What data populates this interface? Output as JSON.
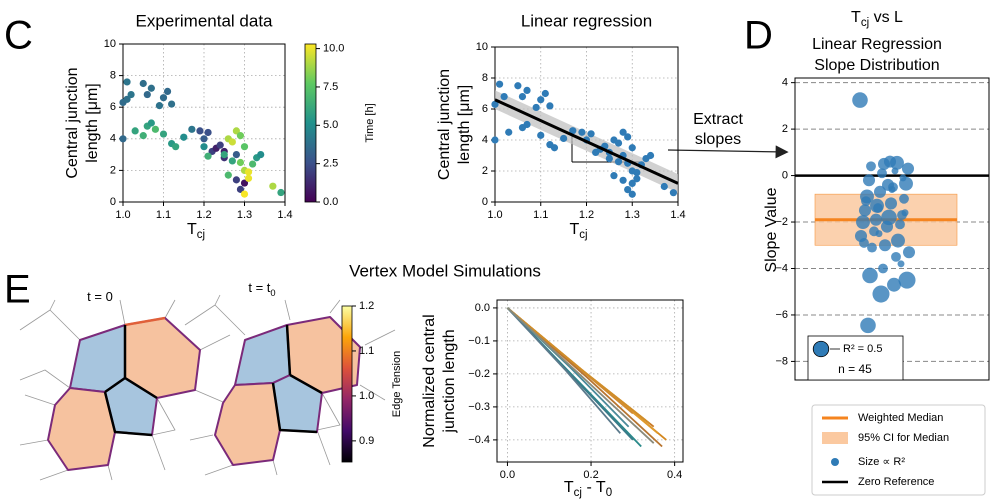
{
  "figure": {
    "panel_labels": [
      "C",
      "D",
      "E"
    ],
    "extract_label": [
      "Extract",
      "slopes"
    ],
    "section_title": "Vertex Model Simulations",
    "snapshots": [
      [
        "t = 0"
      ],
      [
        "t = t",
        "0"
      ]
    ]
  },
  "chart_data": [
    {
      "type": "scatter",
      "title": "Experimental data",
      "y_label": [
        "Central junction",
        "length [μm]"
      ],
      "x_label": [
        "T",
        "cj"
      ],
      "x": [
        1.0,
        1.0,
        1.01,
        1.01,
        1.02,
        1.05,
        1.06,
        1.07,
        1.09,
        1.1,
        1.11,
        1.12,
        1.03,
        1.05,
        1.06,
        1.07,
        1.08,
        1.1,
        1.12,
        1.13,
        1.15,
        1.17,
        1.19,
        1.2,
        1.21,
        1.22,
        1.23,
        1.24,
        1.25,
        1.25,
        1.26,
        1.27,
        1.28,
        1.29,
        1.3,
        1.28,
        1.27,
        1.29,
        1.3,
        1.31,
        1.32,
        1.26,
        1.28,
        1.3,
        1.31,
        1.29,
        1.3,
        1.33,
        1.34,
        1.25,
        1.21,
        1.37,
        1.39,
        1.2
      ],
      "values": [
        4.0,
        6.3,
        7.6,
        6.5,
        6.8,
        7.5,
        6.8,
        7.2,
        6.1,
        6.6,
        7.0,
        6.2,
        4.5,
        4.2,
        4.8,
        5.0,
        4.6,
        4.3,
        3.7,
        3.5,
        4.1,
        4.6,
        4.5,
        4.0,
        4.4,
        3.2,
        3.4,
        3.6,
        3.2,
        2.8,
        4.0,
        3.8,
        4.5,
        4.2,
        3.5,
        3.0,
        2.6,
        2.5,
        2.0,
        1.9,
        2.4,
        1.7,
        1.4,
        1.2,
        1.5,
        0.8,
        0.5,
        2.8,
        3.0,
        3.0,
        2.9,
        1.0,
        0.6,
        3.5
      ],
      "color_values": [
        3.5,
        3.6,
        4.0,
        3.8,
        4.0,
        3.7,
        3.5,
        3.8,
        3.9,
        3.6,
        3.5,
        3.8,
        6.0,
        6.5,
        6.0,
        5.5,
        7.0,
        6.0,
        5.5,
        6.0,
        5.0,
        4.0,
        2.5,
        3.0,
        2.5,
        2.0,
        1.0,
        2.0,
        1.0,
        1.5,
        9.0,
        9.5,
        9.0,
        8.0,
        7.5,
        3.0,
        6.0,
        8.0,
        9.0,
        10.0,
        7.0,
        7.0,
        2.0,
        0.5,
        10.0,
        2.0,
        10.2,
        5.5,
        5.0,
        6.0,
        6.5,
        9.0,
        6.0,
        5.0
      ],
      "colormap": [
        "#440154",
        "#3b528b",
        "#21918c",
        "#5ec962",
        "#fde725"
      ],
      "colorbar": {
        "label": "Time [h]",
        "lim": [
          0,
          10.3
        ],
        "ticks": [
          {
            "value": 0,
            "label": "0.0"
          },
          {
            "value": 2.5,
            "label": "2.5"
          },
          {
            "value": 5,
            "label": "5.0"
          },
          {
            "value": 7.5,
            "label": "7.5"
          },
          {
            "value": 10,
            "label": "10.0"
          }
        ]
      },
      "xlim": [
        1.0,
        1.4
      ],
      "ylim": [
        0,
        10
      ],
      "xticks": [
        {
          "value": 1.0,
          "label": "1.0"
        },
        {
          "value": 1.1,
          "label": "1.1"
        },
        {
          "value": 1.2,
          "label": "1.2"
        },
        {
          "value": 1.3,
          "label": "1.3"
        },
        {
          "value": 1.4,
          "label": "1.4"
        }
      ],
      "yticks": [
        0,
        2,
        4,
        6,
        8,
        10
      ],
      "grid": true
    },
    {
      "type": "scatter",
      "title": "Linear regression",
      "y_label": [
        "Central junction",
        "length [μm]"
      ],
      "x_label": [
        "T",
        "cj"
      ],
      "x": [
        1.0,
        1.01,
        1.02,
        1.05,
        1.06,
        1.07,
        1.09,
        1.1,
        1.11,
        1.12,
        1.03,
        1.06,
        1.07,
        1.1,
        1.12,
        1.13,
        1.15,
        1.17,
        1.19,
        1.2,
        1.21,
        1.22,
        1.23,
        1.24,
        1.25,
        1.25,
        1.26,
        1.27,
        1.28,
        1.29,
        1.3,
        1.28,
        1.27,
        1.29,
        1.3,
        1.31,
        1.32,
        1.26,
        1.28,
        1.3,
        1.31,
        1.29,
        1.3,
        1.33,
        1.34,
        1.37,
        1.39,
        1.0
      ],
      "values": [
        6.3,
        7.6,
        6.8,
        7.5,
        6.8,
        7.2,
        6.1,
        6.6,
        7.0,
        6.2,
        4.5,
        4.8,
        5.0,
        4.3,
        3.7,
        3.5,
        4.1,
        4.6,
        4.5,
        4.0,
        4.4,
        3.2,
        3.4,
        3.6,
        3.2,
        2.8,
        4.0,
        3.8,
        4.5,
        4.2,
        3.5,
        3.0,
        2.6,
        2.5,
        2.0,
        1.9,
        2.4,
        1.7,
        1.4,
        1.2,
        1.5,
        0.8,
        0.5,
        2.8,
        3.0,
        1.0,
        0.6,
        4.0
      ],
      "color": "#2f7bb6",
      "fit": {
        "x": [
          1.0,
          1.4
        ],
        "values": [
          6.6,
          1.2
        ],
        "lower": [
          6.0,
          0.6
        ],
        "upper": [
          7.2,
          1.8
        ],
        "color": "#000000",
        "band_color": "#bdbdbd"
      },
      "xlim": [
        1.0,
        1.4
      ],
      "ylim": [
        0,
        10
      ],
      "xticks": [
        {
          "value": 1.0,
          "label": "1.0"
        },
        {
          "value": 1.1,
          "label": "1.1"
        },
        {
          "value": 1.2,
          "label": "1.2"
        },
        {
          "value": 1.3,
          "label": "1.3"
        },
        {
          "value": 1.4,
          "label": "1.4"
        }
      ],
      "yticks": [
        0,
        2,
        4,
        6,
        8,
        10
      ],
      "grid": true
    },
    {
      "type": "strip",
      "title": [
        "T",
        "cj",
        " vs L"
      ],
      "subtitle": [
        "Linear Regression",
        "Slope Distribution"
      ],
      "y_label": "Slope Value",
      "values": [
        3.25,
        0.55,
        0.5,
        0.4,
        0.3,
        0.2,
        0.1,
        -0.2,
        -0.35,
        -0.5,
        -0.7,
        -0.9,
        -1.0,
        -1.2,
        -1.4,
        -1.5,
        -1.7,
        -1.8,
        -1.9,
        -2.0,
        -2.1,
        -2.2,
        -2.4,
        -2.6,
        -2.8,
        -3.0,
        -3.1,
        -3.3,
        -3.5,
        -4.0,
        -4.3,
        -4.5,
        -4.7,
        -5.1,
        -6.45,
        -1.6,
        -0.6,
        -2.5,
        -1.1,
        -0.1,
        0.6,
        -1.3,
        -2.9,
        -3.8,
        -0.4
      ],
      "sizes": [
        0.5,
        0.4,
        0.3,
        0.2,
        0.3,
        0.1,
        0.2,
        0.3,
        0.4,
        0.2,
        0.3,
        0.4,
        0.2,
        0.3,
        0.2,
        0.3,
        0.2,
        0.5,
        0.3,
        0.4,
        0.2,
        0.3,
        0.2,
        0.3,
        0.4,
        0.3,
        0.2,
        0.3,
        0.2,
        0.2,
        0.5,
        0.6,
        0.4,
        0.6,
        0.5,
        0.1,
        0.1,
        0.1,
        0.2,
        0.1,
        0.3,
        0.4,
        0.2,
        0.1,
        0.3
      ],
      "color": "#2f7bb6",
      "median": -1.9,
      "median_color": "#f5841f",
      "ci": [
        -3.0,
        -0.8
      ],
      "ci_color": "#fbc9a0",
      "reference": 0,
      "reference_color": "#000000",
      "size_legend": {
        "value": 0.5,
        "label": "R² = 0.5"
      },
      "n_label": "n = 45",
      "legend": [
        "Weighted Median",
        "95% CI for Median",
        "Size ∝ R²",
        "Zero Reference"
      ],
      "ylim": [
        -8.8,
        4.2
      ],
      "yticks": [
        {
          "value": -8,
          "label": "−8"
        },
        {
          "value": -6,
          "label": "−6"
        },
        {
          "value": -4,
          "label": "−4"
        },
        {
          "value": -2,
          "label": "−2"
        },
        0,
        2,
        4
      ],
      "grid": true
    },
    {
      "type": "line",
      "y_label": [
        "Normalized central",
        "junction length"
      ],
      "x_label": [
        "T",
        "cj",
        " - T",
        "0"
      ],
      "series": [
        {
          "color": "#d4881f",
          "x": [
            0,
            0.19,
            0.38
          ],
          "values": [
            0,
            -0.2,
            -0.4
          ]
        },
        {
          "color": "#e09a2c",
          "x": [
            0,
            0.18,
            0.36
          ],
          "values": [
            0,
            -0.19,
            -0.38
          ]
        },
        {
          "color": "#c97a26",
          "x": [
            0,
            0.17,
            0.35
          ],
          "values": [
            0,
            -0.18,
            -0.36
          ]
        },
        {
          "color": "#e3a43a",
          "x": [
            0,
            0.16,
            0.33
          ],
          "values": [
            0,
            -0.17,
            -0.34
          ]
        },
        {
          "color": "#d08a30",
          "x": [
            0,
            0.15,
            0.3
          ],
          "values": [
            0,
            -0.16,
            -0.32
          ]
        },
        {
          "color": "#b87530",
          "x": [
            0,
            0.19,
            0.37
          ],
          "values": [
            0,
            -0.21,
            -0.42
          ]
        },
        {
          "color": "#cf8d2a",
          "x": [
            0,
            0.17,
            0.34
          ],
          "values": [
            0,
            -0.18,
            -0.35
          ]
        },
        {
          "color": "#2a8a8a",
          "x": [
            0,
            0.16,
            0.32
          ],
          "values": [
            0,
            -0.21,
            -0.42
          ]
        },
        {
          "color": "#3a7b8a",
          "x": [
            0,
            0.15,
            0.3
          ],
          "values": [
            0,
            -0.2,
            -0.4
          ]
        },
        {
          "color": "#5b7a8c",
          "x": [
            0,
            0.14,
            0.27
          ],
          "values": [
            0,
            -0.19,
            -0.38
          ]
        },
        {
          "color": "#4a8a9a",
          "x": [
            0,
            0.15,
            0.29
          ],
          "values": [
            0,
            -0.18,
            -0.36
          ]
        },
        {
          "color": "#8a8a7a",
          "x": [
            0,
            0.18,
            0.35
          ],
          "values": [
            0,
            -0.21,
            -0.41
          ]
        }
      ],
      "colormap": [
        "#000004",
        "#420a68",
        "#932667",
        "#dd513a",
        "#fca50a",
        "#fcffa4"
      ],
      "colorbar": {
        "label": "Edge Tension",
        "lim": [
          0.853,
          1.2
        ],
        "ticks": [
          {
            "value": 0.9,
            "label": "0.9"
          },
          {
            "value": 1.0,
            "label": "1.0"
          },
          {
            "value": 1.1,
            "label": "1.1"
          },
          {
            "value": 1.2,
            "label": "1.2"
          }
        ]
      },
      "xlim": [
        -0.025,
        0.42
      ],
      "ylim": [
        -0.467,
        0.024
      ],
      "xticks": [
        {
          "value": 0,
          "label": "0.0"
        },
        {
          "value": 0.2,
          "label": "0.2"
        },
        {
          "value": 0.4,
          "label": "0.4"
        }
      ],
      "yticks": [
        {
          "value": 0,
          "label": "0.0"
        },
        {
          "value": -0.1,
          "label": "−0.1"
        },
        {
          "value": -0.2,
          "label": "−0.2"
        },
        {
          "value": -0.3,
          "label": "−0.3"
        },
        {
          "value": -0.4,
          "label": "−0.4"
        }
      ],
      "grid": true
    }
  ]
}
